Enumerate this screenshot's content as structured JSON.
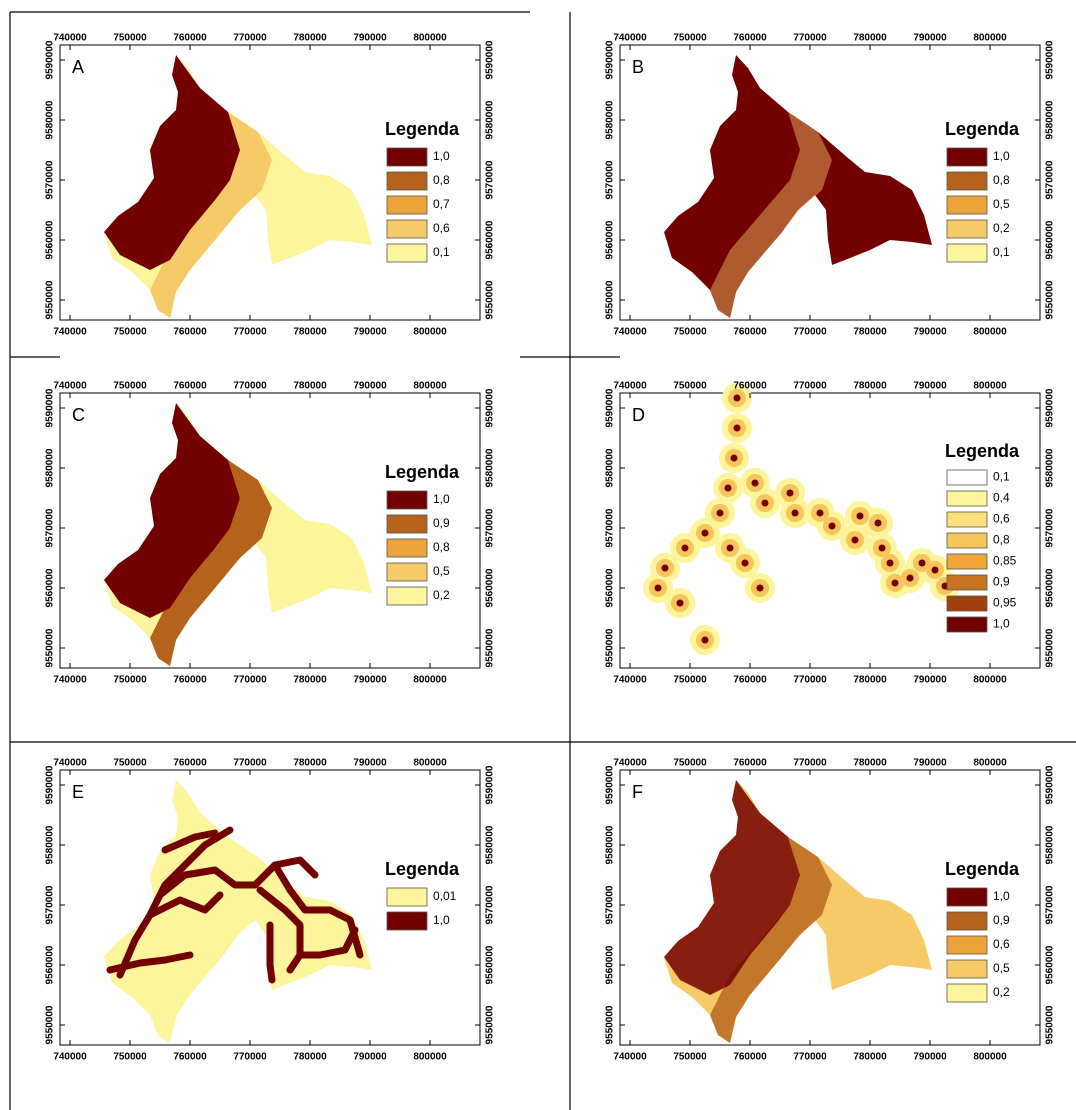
{
  "axes": {
    "x_ticks": [
      740000,
      750000,
      760000,
      770000,
      780000,
      790000,
      800000
    ],
    "y_ticks": [
      9550000,
      9560000,
      9570000,
      9580000,
      9590000
    ]
  },
  "panels": [
    {
      "label": "A",
      "legend": {
        "title": "Legenda",
        "items": [
          {
            "label": "1,0",
            "color": "#730000"
          },
          {
            "label": "0,8",
            "color": "#b5621c"
          },
          {
            "label": "0,7",
            "color": "#eba43a"
          },
          {
            "label": "0,6",
            "color": "#f7ca68"
          },
          {
            "label": "0,1",
            "color": "#fcf59c"
          }
        ]
      }
    },
    {
      "label": "B",
      "legend": {
        "title": "Legenda",
        "items": [
          {
            "label": "1,0",
            "color": "#730000"
          },
          {
            "label": "0,8",
            "color": "#b5621c"
          },
          {
            "label": "0,5",
            "color": "#eba43a"
          },
          {
            "label": "0,2",
            "color": "#f7ca68"
          },
          {
            "label": "0,1",
            "color": "#fcf59c"
          }
        ]
      }
    },
    {
      "label": "C",
      "legend": {
        "title": "Legenda",
        "items": [
          {
            "label": "1,0",
            "color": "#730000"
          },
          {
            "label": "0,9",
            "color": "#b5621c"
          },
          {
            "label": "0,8",
            "color": "#eba43a"
          },
          {
            "label": "0,5",
            "color": "#f7ca68"
          },
          {
            "label": "0,2",
            "color": "#fcf59c"
          }
        ]
      }
    },
    {
      "label": "D",
      "legend": {
        "title": "Legenda",
        "items": [
          {
            "label": "0,1",
            "color": "#ffffff"
          },
          {
            "label": "0,4",
            "color": "#fcf59c"
          },
          {
            "label": "0,6",
            "color": "#fbe07c"
          },
          {
            "label": "0,8",
            "color": "#f8c45c"
          },
          {
            "label": "0,85",
            "color": "#f0a638"
          },
          {
            "label": "0,9",
            "color": "#c8741f"
          },
          {
            "label": "0,95",
            "color": "#a0400e"
          },
          {
            "label": "1,0",
            "color": "#730000"
          }
        ]
      }
    },
    {
      "label": "E",
      "legend": {
        "title": "Legenda",
        "items": [
          {
            "label": "0,01",
            "color": "#fcf59c"
          },
          {
            "label": "1,0",
            "color": "#730000"
          }
        ]
      }
    },
    {
      "label": "F",
      "legend": {
        "title": "Legenda",
        "items": [
          {
            "label": "1,0",
            "color": "#730000"
          },
          {
            "label": "0,9",
            "color": "#b5621c"
          },
          {
            "label": "0,6",
            "color": "#eba43a"
          },
          {
            "label": "0,5",
            "color": "#f7ca68"
          },
          {
            "label": "0,2",
            "color": "#fcf59c"
          }
        ]
      }
    }
  ]
}
